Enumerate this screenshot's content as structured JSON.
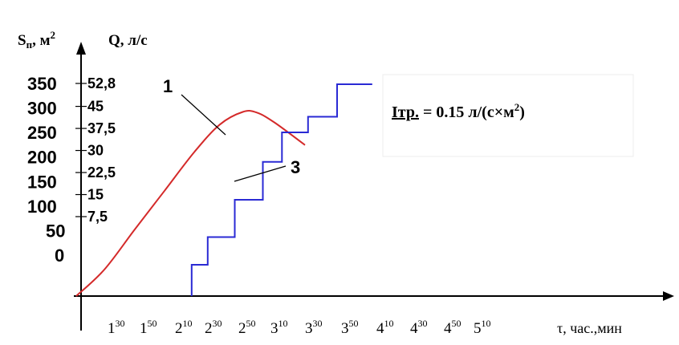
{
  "chart_data": {
    "type": "line",
    "title": "",
    "y_axis_left": {
      "label_base": "S",
      "label_sub": "п",
      "label_unit": ", м",
      "label_sup": "2",
      "ticks": [
        "0",
        "50",
        "100",
        "150",
        "200",
        "250",
        "300",
        "350"
      ],
      "tick_values": [
        0,
        50,
        100,
        150,
        200,
        250,
        300,
        350
      ]
    },
    "y_axis_right": {
      "label": "Q, л/с",
      "ticks": [
        "7,5",
        "15",
        "22,5",
        "30",
        "37,5",
        "45",
        "52,8"
      ],
      "tick_values": [
        7.5,
        15,
        22.5,
        30,
        37.5,
        45,
        52.8
      ]
    },
    "x_axis": {
      "label": "τ, час.,мин",
      "ticks": [
        {
          "h": "1",
          "m": "30"
        },
        {
          "h": "1",
          "m": "50"
        },
        {
          "h": "2",
          "m": "10"
        },
        {
          "h": "2",
          "m": "30"
        },
        {
          "h": "2",
          "m": "50"
        },
        {
          "h": "3",
          "m": "10"
        },
        {
          "h": "3",
          "m": "30"
        },
        {
          "h": "3",
          "m": "50"
        },
        {
          "h": "4",
          "m": "10"
        },
        {
          "h": "4",
          "m": "30"
        },
        {
          "h": "4",
          "m": "50"
        },
        {
          "h": "5",
          "m": "10"
        }
      ]
    },
    "series": [
      {
        "name": "1",
        "color": "#d42a2a",
        "kind": "smooth",
        "points": [
          [
            1.02,
            0
          ],
          [
            1.3,
            44
          ],
          [
            1.6,
            110
          ],
          [
            1.9,
            175
          ],
          [
            2.2,
            240
          ],
          [
            2.45,
            285
          ],
          [
            2.68,
            306
          ],
          [
            2.82,
            305
          ],
          [
            3.0,
            288
          ],
          [
            3.3,
            251
          ]
        ]
      },
      {
        "name": "3",
        "color": "#2a2ad4",
        "kind": "step",
        "points": [
          [
            2.17,
            0
          ],
          [
            2.17,
            52
          ],
          [
            2.33,
            52
          ],
          [
            2.33,
            98
          ],
          [
            2.6,
            98
          ],
          [
            2.6,
            160
          ],
          [
            2.88,
            160
          ],
          [
            2.88,
            223
          ],
          [
            3.07,
            223
          ],
          [
            3.07,
            272
          ],
          [
            3.33,
            272
          ],
          [
            3.33,
            298
          ],
          [
            3.62,
            298
          ],
          [
            3.62,
            352
          ],
          [
            3.97,
            352
          ]
        ]
      }
    ],
    "annotation": {
      "text_i": "Iтр.",
      "text_rest": " = 0.15 л/(с×м",
      "text_sup": "2",
      "text_end": ")"
    },
    "curve_labels": [
      "1",
      "3"
    ]
  }
}
